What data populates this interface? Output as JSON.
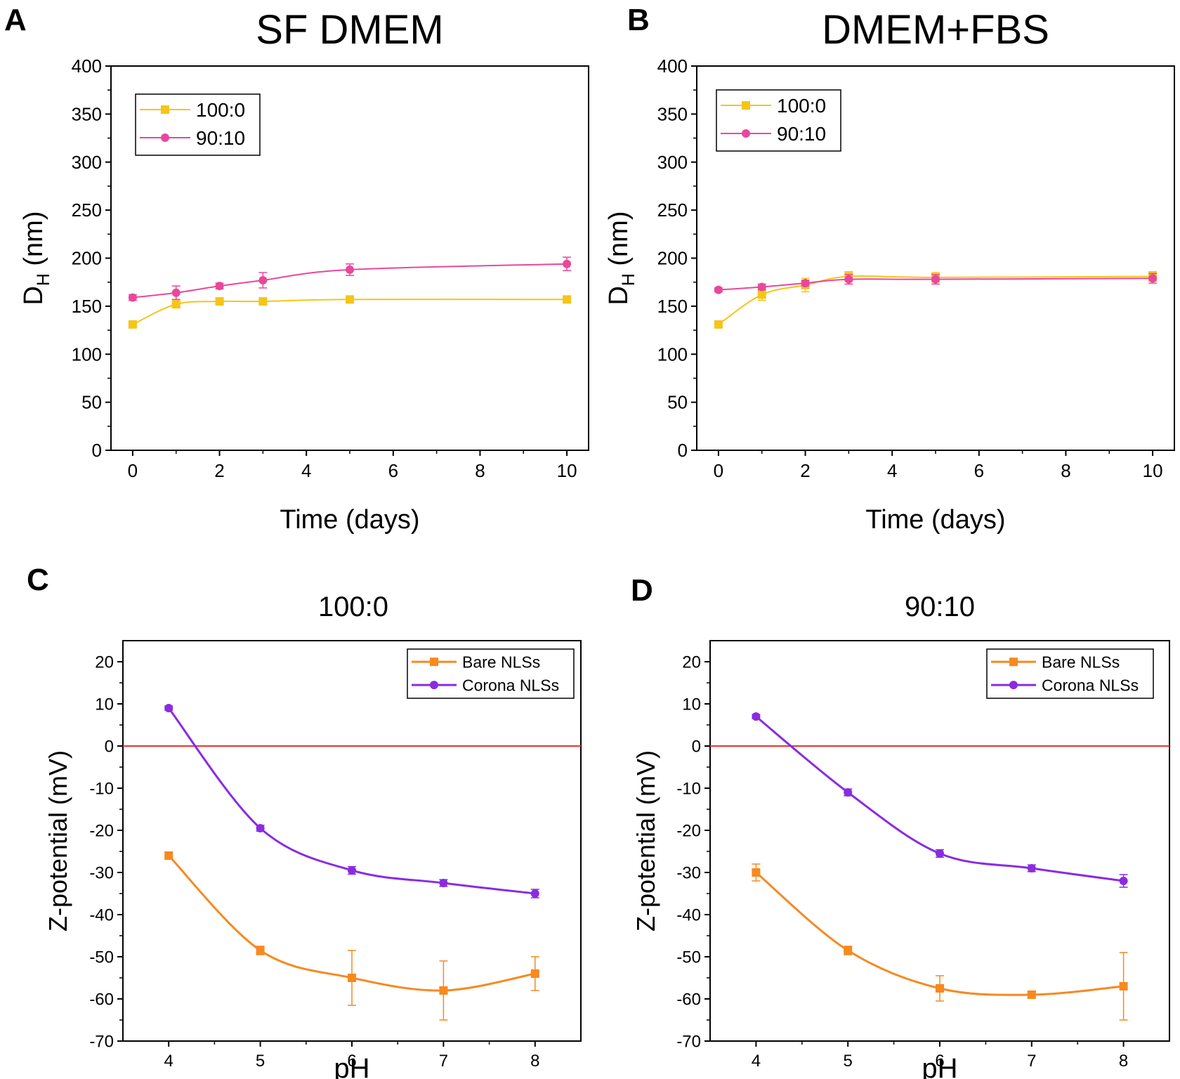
{
  "panels": [
    {
      "letter": "A",
      "title": "SF DMEM"
    },
    {
      "letter": "B",
      "title": "DMEM+FBS"
    },
    {
      "letter": "C",
      "title": "100:0"
    },
    {
      "letter": "D",
      "title": "90:10"
    }
  ],
  "chart_data": [
    {
      "panel": "A",
      "type": "line",
      "title": "SF DMEM",
      "xlabel": "Time (days)",
      "ylabel": "D",
      "ylabel_sub": "H",
      "ylabel_unit": " (nm)",
      "xlim": [
        -0.5,
        10.5
      ],
      "ylim": [
        0,
        400
      ],
      "xticks": [
        0,
        2,
        4,
        6,
        8,
        10
      ],
      "yticks": [
        0,
        50,
        100,
        150,
        200,
        250,
        300,
        350,
        400
      ],
      "grid": false,
      "legend_position": "top-left",
      "reference_line": null,
      "series": [
        {
          "name": "100:0",
          "color": "#f5c518",
          "marker": "square",
          "x": [
            0,
            1,
            2,
            3,
            5,
            10
          ],
          "y": [
            131,
            152,
            155,
            155,
            157,
            157
          ],
          "err": [
            2,
            3,
            2,
            2,
            2,
            2
          ]
        },
        {
          "name": "90:10",
          "color": "#e8489c",
          "marker": "circle",
          "x": [
            0,
            1,
            2,
            3,
            5,
            10
          ],
          "y": [
            159,
            164,
            171,
            177,
            188,
            194
          ],
          "err": [
            3,
            7,
            3,
            8,
            6,
            7
          ]
        }
      ]
    },
    {
      "panel": "B",
      "type": "line",
      "title": "DMEM+FBS",
      "xlabel": "Time (days)",
      "ylabel": "D",
      "ylabel_sub": "H",
      "ylabel_unit": " (nm)",
      "xlim": [
        -0.5,
        10.5
      ],
      "ylim": [
        0,
        400
      ],
      "xticks": [
        0,
        2,
        4,
        6,
        8,
        10
      ],
      "yticks": [
        0,
        50,
        100,
        150,
        200,
        250,
        300,
        350,
        400
      ],
      "grid": false,
      "legend_position": "top-left",
      "reference_line": null,
      "series": [
        {
          "name": "100:0",
          "color": "#f5c518",
          "marker": "square",
          "x": [
            0,
            1,
            2,
            3,
            5,
            10
          ],
          "y": [
            131,
            162,
            172,
            181,
            180,
            181
          ],
          "err": [
            2,
            6,
            7,
            5,
            5,
            5
          ]
        },
        {
          "name": "90:10",
          "color": "#e8489c",
          "marker": "circle",
          "x": [
            0,
            1,
            2,
            3,
            5,
            10
          ],
          "y": [
            167,
            170,
            174,
            178,
            178,
            179
          ],
          "err": [
            2,
            3,
            3,
            5,
            5,
            5
          ]
        }
      ]
    },
    {
      "panel": "C",
      "type": "scatter",
      "title": "100:0",
      "xlabel": "pH",
      "ylabel": "Z-potential (mV)",
      "ylabel_sub": "",
      "ylabel_unit": "",
      "xlim": [
        3.5,
        8.5
      ],
      "ylim": [
        -70,
        25
      ],
      "xticks": [
        4,
        5,
        6,
        7,
        8
      ],
      "yticks": [
        -70,
        -60,
        -50,
        -40,
        -30,
        -20,
        -10,
        0,
        10,
        20
      ],
      "grid": false,
      "legend_position": "top-right",
      "reference_line": 0,
      "series": [
        {
          "name": "Bare NLSs",
          "color": "#f7891f",
          "marker": "square",
          "x": [
            4,
            5,
            6,
            7,
            8
          ],
          "y": [
            -26,
            -48.5,
            -55,
            -58,
            -54
          ],
          "err": [
            0.8,
            1,
            6.5,
            7,
            4
          ]
        },
        {
          "name": "Corona NLSs",
          "color": "#8a2be2",
          "marker": "circle",
          "x": [
            4,
            5,
            6,
            7,
            8
          ],
          "y": [
            9,
            -19.5,
            -29.5,
            -32.5,
            -35
          ],
          "err": [
            0.5,
            0.7,
            0.9,
            0.8,
            1
          ]
        }
      ]
    },
    {
      "panel": "D",
      "type": "scatter",
      "title": "90:10",
      "xlabel": "pH",
      "ylabel": "Z-potential (mV)",
      "ylabel_sub": "",
      "ylabel_unit": "",
      "xlim": [
        3.5,
        8.5
      ],
      "ylim": [
        -70,
        25
      ],
      "xticks": [
        4,
        5,
        6,
        7,
        8
      ],
      "yticks": [
        -70,
        -60,
        -50,
        -40,
        -30,
        -20,
        -10,
        0,
        10,
        20
      ],
      "grid": false,
      "legend_position": "top-right",
      "reference_line": 0,
      "series": [
        {
          "name": "Bare NLSs",
          "color": "#f7891f",
          "marker": "square",
          "x": [
            4,
            5,
            6,
            7,
            8
          ],
          "y": [
            -30,
            -48.5,
            -57.5,
            -59,
            -57
          ],
          "err": [
            2,
            1,
            3,
            0.8,
            8
          ]
        },
        {
          "name": "Corona NLSs",
          "color": "#8a2be2",
          "marker": "circle",
          "x": [
            4,
            5,
            6,
            7,
            8
          ],
          "y": [
            7,
            -11,
            -25.5,
            -29,
            -32
          ],
          "err": [
            0.5,
            0.8,
            0.9,
            0.8,
            1.5
          ]
        }
      ]
    }
  ]
}
